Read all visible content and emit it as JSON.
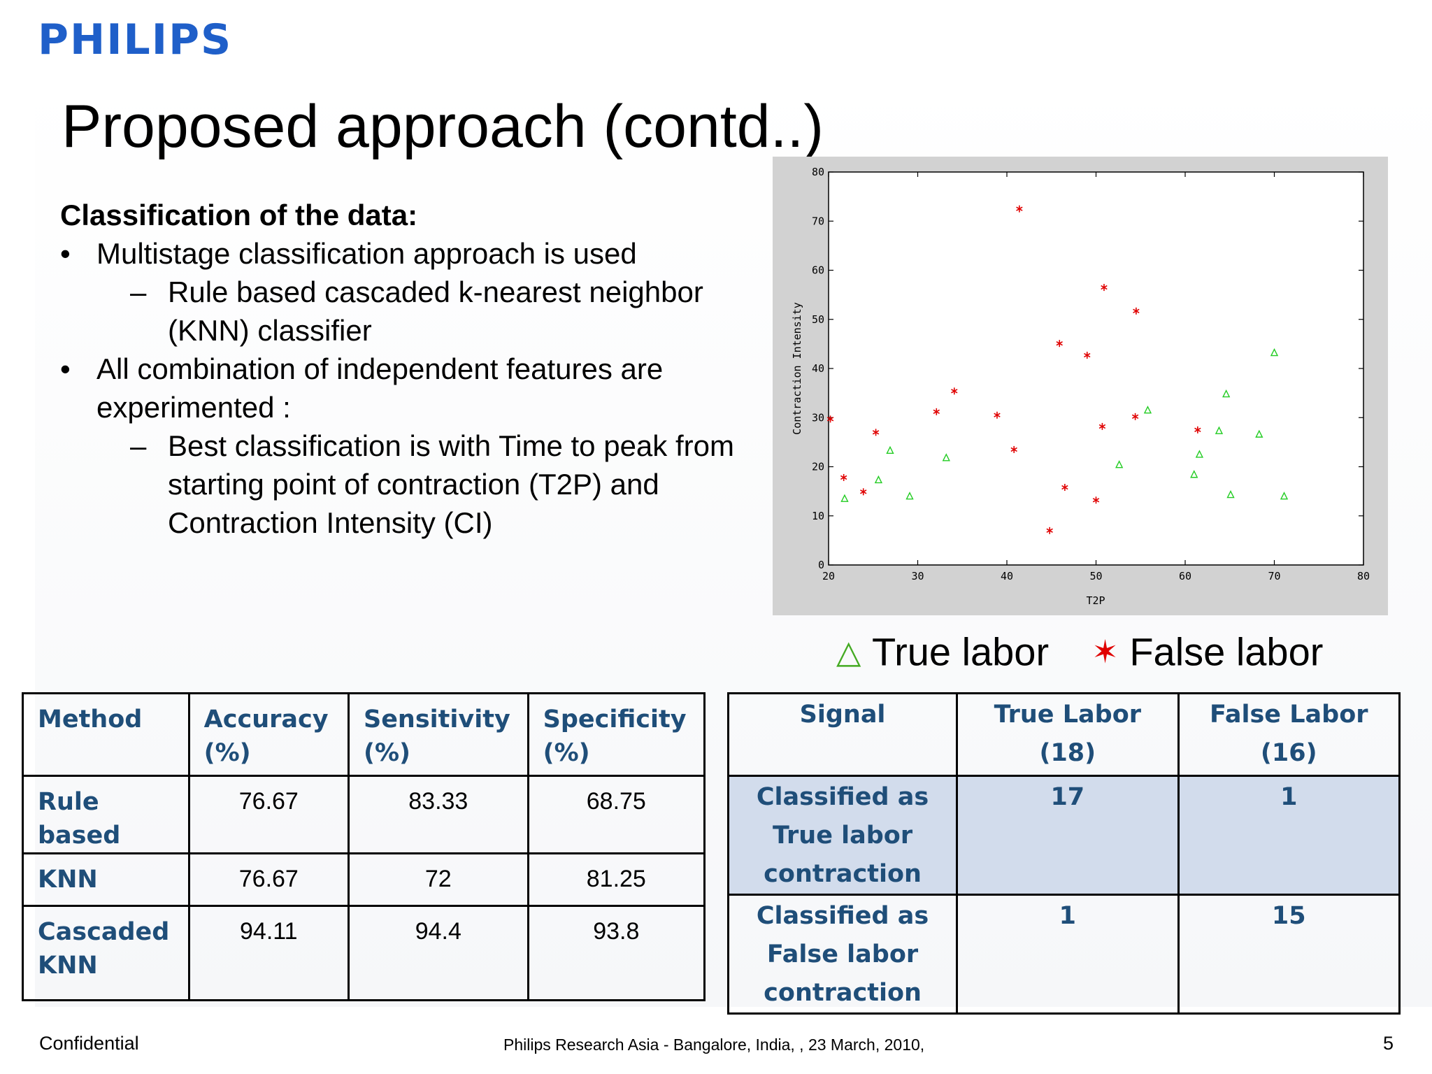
{
  "logo": "PHILIPS",
  "title": "Proposed approach (contd..)",
  "content": {
    "heading": "Classification of the data:",
    "bullet_mark": "•",
    "sub_mark": "–",
    "bullet1": "Multistage classification approach is used",
    "sub1": "Rule based cascaded k-nearest neighbor (KNN) classifier",
    "bullet2": "All combination of independent features are experimented :",
    "sub2": "Best classification is with Time to peak from starting point of contraction (T2P) and Contraction Intensity (CI)"
  },
  "chart_data": {
    "type": "scatter",
    "xlabel": "T2P",
    "ylabel": "Contraction Intensity",
    "xlim": [
      20,
      80
    ],
    "ylim": [
      0,
      80
    ],
    "xticks": [
      20,
      30,
      40,
      50,
      60,
      70,
      80
    ],
    "yticks": [
      0,
      10,
      20,
      30,
      40,
      50,
      60,
      70,
      80
    ],
    "grid": false,
    "series": [
      {
        "name": "True labor",
        "marker": "triangle",
        "color": "#22cc22",
        "points": [
          [
            21.8,
            13.5
          ],
          [
            25.6,
            17.3
          ],
          [
            26.9,
            23.3
          ],
          [
            29.1,
            14
          ],
          [
            33.2,
            21.8
          ],
          [
            52.6,
            20.4
          ],
          [
            55.8,
            31.5
          ],
          [
            61,
            18.4
          ],
          [
            61.6,
            22.5
          ],
          [
            63.8,
            27.3
          ],
          [
            64.6,
            34.8
          ],
          [
            65.1,
            14.3
          ],
          [
            68.3,
            26.6
          ],
          [
            70,
            43.2
          ],
          [
            71.1,
            14
          ]
        ]
      },
      {
        "name": "False labor",
        "marker": "asterisk",
        "color": "#e00000",
        "points": [
          [
            20.2,
            29.7
          ],
          [
            21.7,
            17.8
          ],
          [
            23.9,
            14.9
          ],
          [
            25.3,
            27
          ],
          [
            32.1,
            31.2
          ],
          [
            34.1,
            35.4
          ],
          [
            38.9,
            30.5
          ],
          [
            40.8,
            23.5
          ],
          [
            41.4,
            72.5
          ],
          [
            44.8,
            7
          ],
          [
            45.9,
            45.1
          ],
          [
            46.5,
            15.8
          ],
          [
            49,
            42.7
          ],
          [
            50,
            13.2
          ],
          [
            50.7,
            28.2
          ],
          [
            50.9,
            56.5
          ],
          [
            54.4,
            30.2
          ],
          [
            54.5,
            51.7
          ],
          [
            61.4,
            27.5
          ]
        ]
      }
    ]
  },
  "legend": {
    "true_symbol": "△",
    "true_label": "True labor",
    "false_symbol": "✶",
    "false_label": "False labor"
  },
  "table1": {
    "headers": [
      "Method",
      "Accuracy (%)",
      "Sensitivity (%)",
      "Specificity (%)"
    ],
    "rows": [
      {
        "method": "Rule based",
        "accuracy": "76.67",
        "sensitivity": "83.33",
        "specificity": "68.75"
      },
      {
        "method": "KNN",
        "accuracy": "76.67",
        "sensitivity": "72",
        "specificity": "81.25"
      },
      {
        "method": "Cascaded KNN",
        "accuracy": "94.11",
        "sensitivity": "94.4",
        "specificity": "93.8"
      }
    ]
  },
  "table2": {
    "headers": [
      "Signal",
      "True Labor (18)",
      "False Labor (16)"
    ],
    "rows": [
      {
        "signal": "Classified as True labor contraction",
        "true_labor": "17",
        "false_labor": "1"
      },
      {
        "signal": "Classified as False labor contraction",
        "true_labor": "1",
        "false_labor": "15"
      }
    ]
  },
  "footer": {
    "left": "Confidential",
    "center": "Philips Research Asia - Bangalore, India,  , 23 March, 2010,",
    "page": "5"
  }
}
